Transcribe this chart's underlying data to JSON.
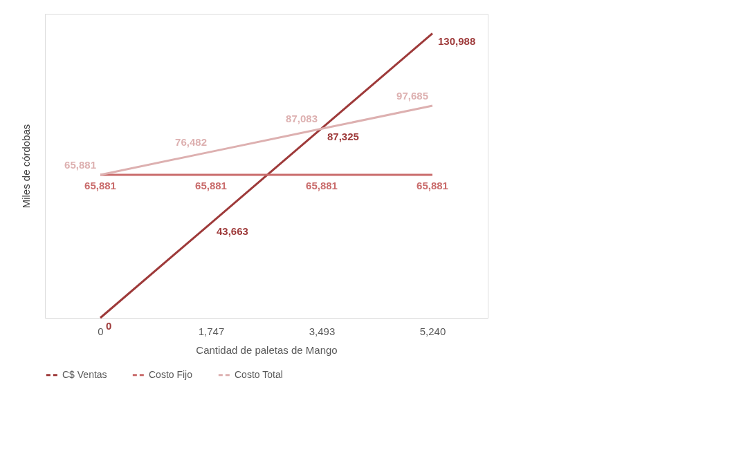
{
  "chart_data": {
    "type": "line",
    "xlabel": "Cantidad de paletas de Mango",
    "ylabel": "Miles de córdobas",
    "categories": [
      "0",
      "1,747",
      "3,493",
      "5,240"
    ],
    "series": [
      {
        "name": "C$ Ventas",
        "color": "#9e3a3a",
        "values": [
          0,
          43663,
          87325,
          130988
        ],
        "value_labels": [
          "0",
          "43,663",
          "87,325",
          "130,988"
        ]
      },
      {
        "name": "Costo Fijo",
        "color": "#c96b6b",
        "values": [
          65881,
          65881,
          65881,
          65881
        ],
        "value_labels": [
          "65,881",
          "65,881",
          "65,881",
          "65,881"
        ]
      },
      {
        "name": "Costo Total",
        "color": "#ddb0b0",
        "values": [
          65881,
          76482,
          87083,
          97685
        ],
        "value_labels": [
          "65,881",
          "76,482",
          "87,083",
          "97,685"
        ]
      }
    ],
    "tick_labels": "x",
    "grid": false,
    "legend": "bottom",
    "marker": "none"
  }
}
